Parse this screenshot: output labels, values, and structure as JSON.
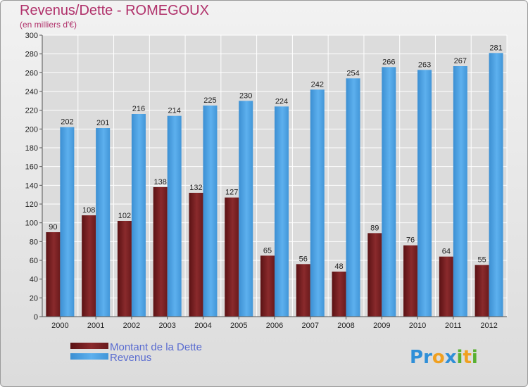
{
  "chart_data": {
    "type": "bar",
    "title": "Revenus/Dette - ROMEGOUX",
    "subtitle": "(en milliers d'€)",
    "categories": [
      "2000",
      "2001",
      "2002",
      "2003",
      "2004",
      "2005",
      "2006",
      "2007",
      "2008",
      "2009",
      "2010",
      "2011",
      "2012"
    ],
    "series": [
      {
        "name": "Montant de la Dette",
        "color": "#7a1f22",
        "values": [
          90,
          108,
          102,
          138,
          132,
          127,
          65,
          56,
          48,
          89,
          76,
          64,
          55
        ]
      },
      {
        "name": "Revenus",
        "color": "#4aa0e2",
        "values": [
          202,
          201,
          216,
          214,
          225,
          230,
          224,
          242,
          254,
          266,
          263,
          267,
          281
        ]
      }
    ],
    "ylim": [
      0,
      300
    ],
    "ytick_step": 20,
    "grid": true,
    "legend_position": "bottom-left"
  },
  "logo": {
    "letters": [
      {
        "ch": "P",
        "color": "#2f8fd8"
      },
      {
        "ch": "r",
        "color": "#2f8fd8"
      },
      {
        "ch": "o",
        "color": "#f0a020"
      },
      {
        "ch": "x",
        "color": "#2f8fd8"
      },
      {
        "ch": "i",
        "color": "#58b030"
      },
      {
        "ch": "t",
        "color": "#f0a020"
      },
      {
        "ch": "i",
        "color": "#58b030"
      }
    ]
  }
}
